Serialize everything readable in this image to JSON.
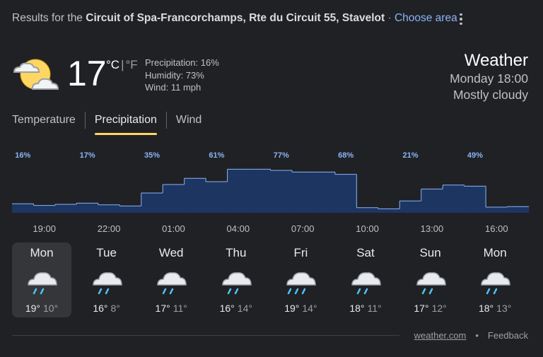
{
  "location": {
    "prefix": "Results for the",
    "name": "Circuit of Spa-Francorchamps, Rte du Circuit 55, Stavelot",
    "separator": "·",
    "choose_area": "Choose area"
  },
  "current": {
    "icon": "partly-cloudy-icon",
    "temperature": "17",
    "unit_c": "°C",
    "unit_sep": "|",
    "unit_f": "°F",
    "precipitation": "Precipitation: 16%",
    "humidity": "Humidity: 73%",
    "wind": "Wind: 11 mph"
  },
  "header": {
    "title": "Weather",
    "datetime": "Monday 18:00",
    "condition": "Mostly cloudy"
  },
  "tabs": [
    {
      "label": "Temperature",
      "active": false
    },
    {
      "label": "Precipitation",
      "active": true
    },
    {
      "label": "Wind",
      "active": false
    }
  ],
  "chart_data": {
    "type": "bar",
    "unit": "%",
    "values": [
      16,
      13,
      15,
      17,
      14,
      12,
      35,
      50,
      61,
      55,
      77,
      77,
      75,
      72,
      72,
      68,
      9,
      7,
      21,
      42,
      49,
      47,
      10,
      11
    ],
    "labels": [
      "16%",
      "",
      "",
      "17%",
      "",
      "",
      "35%",
      "",
      "",
      "61%",
      "",
      "",
      "77%",
      "",
      "",
      "68%",
      "",
      "",
      "21%",
      "",
      "",
      "49%",
      "",
      ""
    ],
    "x_ticks": [
      "19:00",
      "22:00",
      "01:00",
      "04:00",
      "07:00",
      "10:00",
      "13:00",
      "16:00"
    ],
    "colors": {
      "fill": "#1d3561",
      "line": "#8ab4f8",
      "label": "#8ab4f8"
    }
  },
  "days": [
    {
      "name": "Mon",
      "hi": "19°",
      "lo": "10°",
      "icon": "rain-icon",
      "selected": true,
      "drops": 2
    },
    {
      "name": "Tue",
      "hi": "16°",
      "lo": "8°",
      "icon": "rain-icon",
      "selected": false,
      "drops": 2
    },
    {
      "name": "Wed",
      "hi": "17°",
      "lo": "11°",
      "icon": "rain-icon",
      "selected": false,
      "drops": 2
    },
    {
      "name": "Thu",
      "hi": "16°",
      "lo": "14°",
      "icon": "rain-icon",
      "selected": false,
      "drops": 2
    },
    {
      "name": "Fri",
      "hi": "19°",
      "lo": "14°",
      "icon": "heavy-rain-icon",
      "selected": false,
      "drops": 3
    },
    {
      "name": "Sat",
      "hi": "18°",
      "lo": "11°",
      "icon": "rain-icon",
      "selected": false,
      "drops": 2
    },
    {
      "name": "Sun",
      "hi": "17°",
      "lo": "12°",
      "icon": "rain-icon",
      "selected": false,
      "drops": 2
    },
    {
      "name": "Mon",
      "hi": "18°",
      "lo": "13°",
      "icon": "rain-icon",
      "selected": false,
      "drops": 2
    }
  ],
  "footer": {
    "source": "weather.com",
    "dot": "•",
    "feedback": "Feedback"
  }
}
